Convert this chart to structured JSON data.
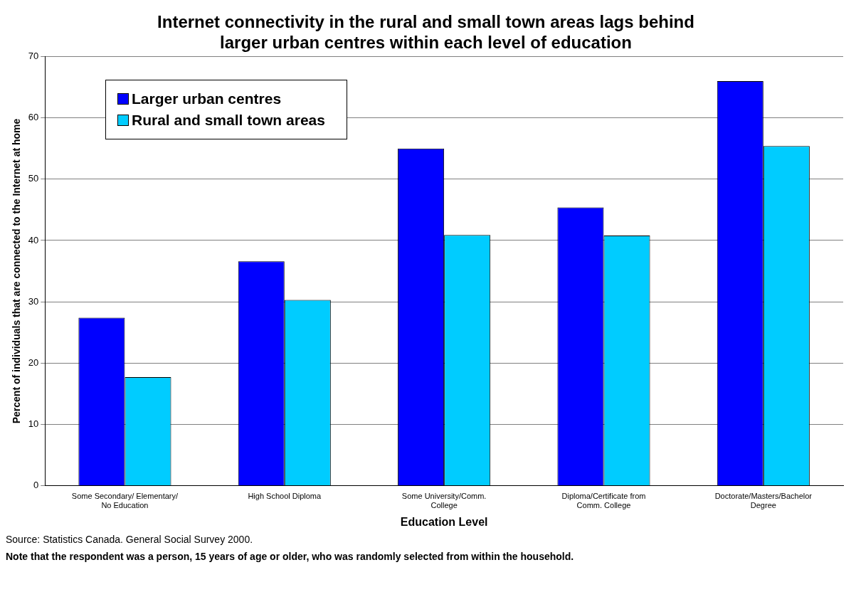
{
  "chart_data": {
    "type": "bar",
    "title": "Internet connectivity in the rural and small town areas lags behind larger urban centres within each level of education",
    "xlabel": "Education Level",
    "ylabel": "Percent of individuals that are connected to the Internet at home",
    "categories": [
      "Some Secondary/ Elementary/ No Education",
      "High School Diploma",
      "Some University/Comm. College",
      "Diploma/Certificate from Comm. College",
      "Doctorate/Masters/Bachelor Degree"
    ],
    "series": [
      {
        "name": "Larger urban centres",
        "color": "#0000ff",
        "values": [
          27.4,
          36.6,
          55.0,
          45.4,
          66.0
        ]
      },
      {
        "name": "Rural and small town areas",
        "color": "#00ccff",
        "values": [
          17.7,
          30.3,
          40.9,
          40.8,
          55.4
        ]
      }
    ],
    "ylim": [
      0,
      70
    ],
    "yticks": [
      0,
      10,
      20,
      30,
      40,
      50,
      60,
      70
    ],
    "grid": "y",
    "legend": "top left",
    "annotations": [
      "Source:  Statistics Canada.  General Social Survey 2000.",
      "Note that the respondent was a person, 15 years of age or older, who was randomly selected from within the household."
    ]
  }
}
